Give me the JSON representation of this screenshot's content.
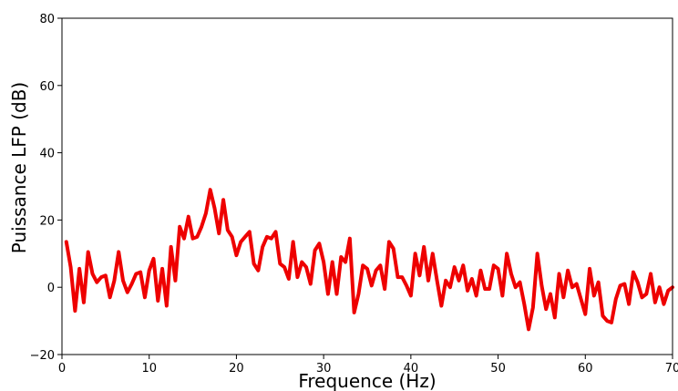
{
  "chart_data": {
    "type": "line",
    "title": "",
    "xlabel": "Frequence (Hz)",
    "ylabel": "Puissance LFP (dB)",
    "xlim": [
      0,
      70
    ],
    "ylim": [
      -20,
      80
    ],
    "xticks": [
      0,
      10,
      20,
      30,
      40,
      50,
      60,
      70
    ],
    "yticks": [
      -20,
      0,
      20,
      40,
      60,
      80
    ],
    "grid": false,
    "legend": "none",
    "series": [
      {
        "color": "#ee0000",
        "x": [
          0.5,
          1.0,
          1.5,
          2.0,
          2.5,
          3.0,
          3.5,
          4.0,
          4.5,
          5.0,
          5.5,
          6.0,
          6.5,
          7.0,
          7.5,
          8.0,
          8.5,
          9.0,
          9.5,
          10.0,
          10.5,
          11.0,
          11.5,
          12.0,
          12.5,
          13.0,
          13.5,
          14.0,
          14.5,
          15.0,
          15.5,
          16.0,
          16.5,
          17.0,
          17.5,
          18.0,
          18.5,
          19.0,
          19.5,
          20.0,
          20.5,
          21.0,
          21.5,
          22.0,
          22.5,
          23.0,
          23.5,
          24.0,
          24.5,
          25.0,
          25.5,
          26.0,
          26.5,
          27.0,
          27.5,
          28.0,
          28.5,
          29.0,
          29.5,
          30.0,
          30.5,
          31.0,
          31.5,
          32.0,
          32.5,
          33.0,
          33.5,
          34.0,
          34.5,
          35.0,
          35.5,
          36.0,
          36.5,
          37.0,
          37.5,
          38.0,
          38.5,
          39.0,
          39.5,
          40.0,
          40.5,
          41.0,
          41.5,
          42.0,
          42.5,
          43.0,
          43.5,
          44.0,
          44.5,
          45.0,
          45.5,
          46.0,
          46.5,
          47.0,
          47.5,
          48.0,
          48.5,
          49.0,
          49.5,
          50.0,
          50.5,
          51.0,
          51.5,
          52.0,
          52.5,
          53.0,
          53.5,
          54.0,
          54.5,
          55.0,
          55.5,
          56.0,
          56.5,
          57.0,
          57.5,
          58.0,
          58.5,
          59.0,
          59.5,
          60.0,
          60.5,
          61.0,
          61.5,
          62.0,
          62.5,
          63.0,
          63.5,
          64.0,
          64.5,
          65.0,
          65.5,
          66.0,
          66.5,
          67.0,
          67.5,
          68.0,
          68.5,
          69.0,
          69.5,
          70.0
        ],
        "values": [
          13.5,
          6,
          -7,
          5.5,
          -4.5,
          10.5,
          4,
          1.5,
          3,
          3.5,
          -3,
          2,
          10.5,
          2,
          -1.5,
          1,
          4,
          4.5,
          -3,
          5,
          8.5,
          -4,
          5.5,
          -5.5,
          12,
          2,
          18,
          14.5,
          21,
          14.5,
          15,
          18,
          22,
          29,
          23.5,
          16,
          26,
          17,
          15,
          9.5,
          13.5,
          15,
          16.5,
          7,
          5,
          12,
          15,
          14.5,
          16.5,
          7,
          6,
          2.5,
          13.5,
          3,
          7.5,
          6,
          1,
          11,
          13,
          7.5,
          -2,
          7.5,
          -2,
          9,
          7.5,
          14.5,
          -7.5,
          -2,
          6.5,
          5.5,
          0.5,
          5,
          6.5,
          -0.5,
          13.5,
          11.5,
          3,
          3,
          0.5,
          -2.5,
          10,
          3.5,
          12,
          2,
          10,
          2,
          -5.5,
          2,
          0,
          6,
          2,
          6.5,
          -1,
          2.5,
          -2.5,
          5,
          -0.5,
          -0.5,
          6.5,
          5.5,
          -2.5,
          10,
          4,
          0,
          1.5,
          -5,
          -12.5,
          -6,
          10,
          0.5,
          -6.5,
          -2,
          -9,
          4,
          -3,
          5,
          0,
          1,
          -3.5,
          -8,
          5.5,
          -2.5,
          1.5,
          -8.5,
          -10,
          -10.5,
          -3.5,
          0.5,
          1,
          -5,
          4.5,
          1.5,
          -3,
          -2,
          4,
          -4.5,
          0,
          -5,
          -1,
          0
        ]
      }
    ]
  }
}
